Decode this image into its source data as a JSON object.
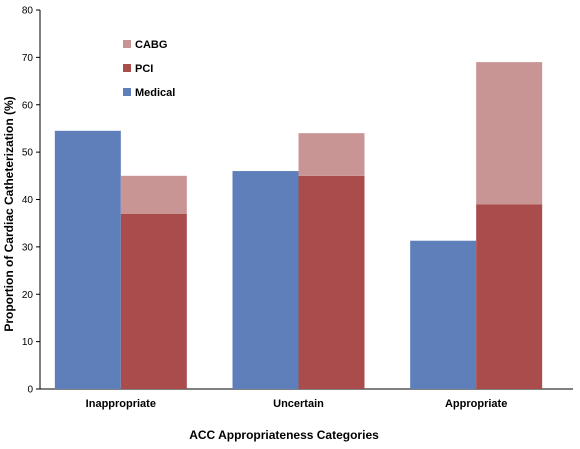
{
  "chart_data": {
    "type": "bar",
    "stacked_groups": true,
    "categories": [
      "Inappropriate",
      "Uncertain",
      "Appropriate"
    ],
    "series": [
      {
        "name": "Medical",
        "values": [
          54.5,
          46,
          31.3
        ],
        "color": "#5f7fbb",
        "stack": "medical"
      },
      {
        "name": "PCI",
        "values": [
          37,
          45,
          39
        ],
        "color": "#a94c4b",
        "stack": "revasc"
      },
      {
        "name": "CABG",
        "values": [
          8,
          9,
          30
        ],
        "color": "#c99594",
        "stack": "revasc"
      }
    ],
    "legend_order": [
      "CABG",
      "PCI",
      "Medical"
    ],
    "legend_position": "top-left",
    "title": "",
    "xlabel": "ACC Appropriateness Categories",
    "ylabel": "Proportion of Cardiac Catheterization (%)",
    "ylim": [
      0,
      80
    ],
    "yticks": [
      0,
      10,
      20,
      30,
      40,
      50,
      60,
      70,
      80
    ],
    "grid": false
  }
}
